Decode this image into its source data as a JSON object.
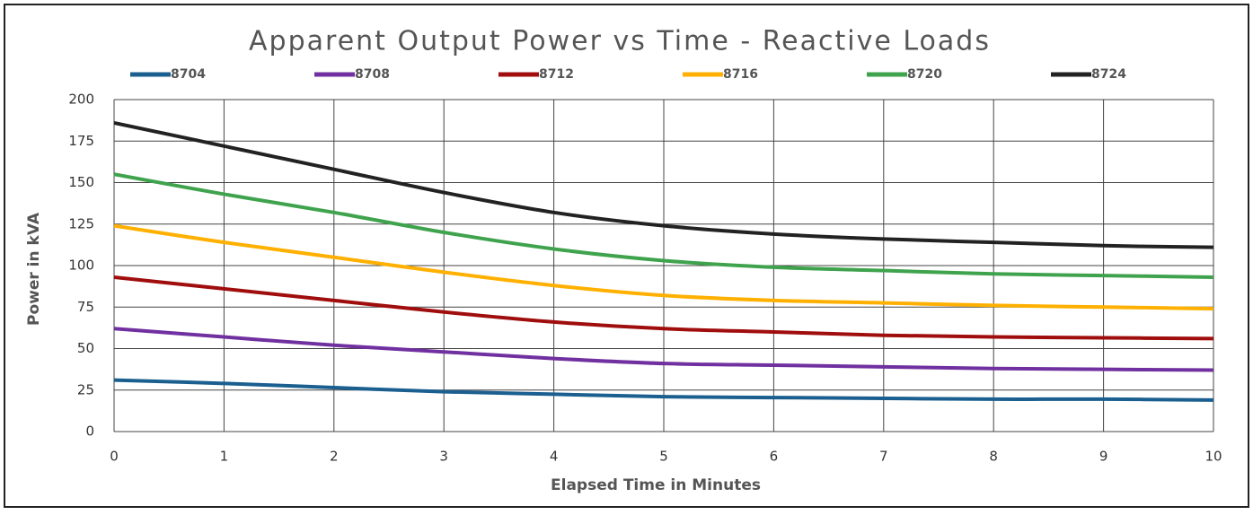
{
  "chart_data": {
    "type": "line",
    "title": "Apparent Output Power vs Time - Reactive Loads",
    "x_label": "Elapsed Time in Minutes",
    "y_label": "Power in kVA",
    "x": [
      0,
      1,
      2,
      3,
      4,
      5,
      6,
      7,
      8,
      9,
      10
    ],
    "series": [
      {
        "name": "8704",
        "color": "#1a5f8f",
        "values": [
          31,
          29,
          26.5,
          24,
          22.5,
          21,
          20.5,
          20,
          19.5,
          19.5,
          19
        ]
      },
      {
        "name": "8708",
        "color": "#7030a0",
        "values": [
          62,
          57,
          52,
          48,
          44,
          41,
          40,
          39,
          38,
          37.5,
          37
        ]
      },
      {
        "name": "8712",
        "color": "#a00d0d",
        "values": [
          93,
          86,
          79,
          72,
          66,
          62,
          60,
          58,
          57,
          56.5,
          56
        ]
      },
      {
        "name": "8716",
        "color": "#ffb000",
        "values": [
          124,
          114,
          105,
          96,
          88,
          82,
          79,
          77.5,
          76,
          75,
          74
        ]
      },
      {
        "name": "8720",
        "color": "#3fa34d",
        "values": [
          155,
          143,
          132,
          120,
          110,
          103,
          99,
          97,
          95,
          94,
          93
        ]
      },
      {
        "name": "8724",
        "color": "#222222",
        "values": [
          186,
          172,
          158,
          144,
          132,
          124,
          119,
          116,
          114,
          112,
          111
        ]
      }
    ],
    "xlim": [
      0,
      10
    ],
    "xticks": [
      0,
      1,
      2,
      3,
      4,
      5,
      6,
      7,
      8,
      9,
      10
    ],
    "ylim": [
      0,
      200
    ],
    "yticks": [
      0,
      25,
      50,
      75,
      100,
      125,
      150,
      175,
      200
    ],
    "grid": true,
    "legend": "top"
  }
}
